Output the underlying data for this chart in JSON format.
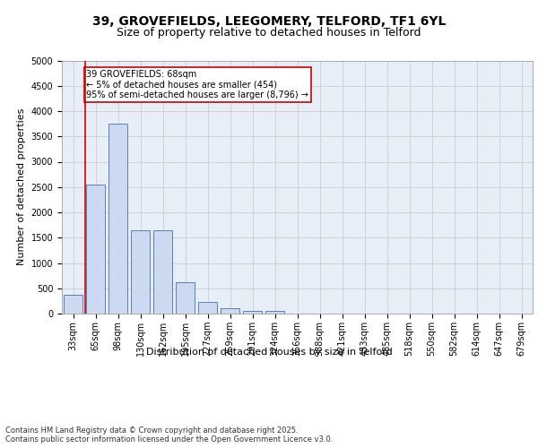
{
  "title_line1": "39, GROVEFIELDS, LEEGOMERY, TELFORD, TF1 6YL",
  "title_line2": "Size of property relative to detached houses in Telford",
  "xlabel": "Distribution of detached houses by size in Telford",
  "ylabel": "Number of detached properties",
  "categories": [
    "33sqm",
    "65sqm",
    "98sqm",
    "130sqm",
    "162sqm",
    "195sqm",
    "227sqm",
    "259sqm",
    "291sqm",
    "324sqm",
    "356sqm",
    "388sqm",
    "421sqm",
    "453sqm",
    "485sqm",
    "518sqm",
    "550sqm",
    "582sqm",
    "614sqm",
    "647sqm",
    "679sqm"
  ],
  "values": [
    380,
    2540,
    3750,
    1650,
    1650,
    620,
    230,
    110,
    60,
    55,
    0,
    0,
    0,
    0,
    0,
    0,
    0,
    0,
    0,
    0,
    0
  ],
  "bar_color": "#ccd9f0",
  "bar_edge_color": "#5580bb",
  "vline_color": "#cc0000",
  "annotation_text": "39 GROVEFIELDS: 68sqm\n← 5% of detached houses are smaller (454)\n95% of semi-detached houses are larger (8,796) →",
  "annotation_box_color": "#cc0000",
  "ylim": [
    0,
    5000
  ],
  "yticks": [
    0,
    500,
    1000,
    1500,
    2000,
    2500,
    3000,
    3500,
    4000,
    4500,
    5000
  ],
  "grid_color": "#cccccc",
  "background_color": "#e8eef8",
  "footer_text": "Contains HM Land Registry data © Crown copyright and database right 2025.\nContains public sector information licensed under the Open Government Licence v3.0.",
  "title_fontsize": 10,
  "subtitle_fontsize": 9,
  "axis_label_fontsize": 8,
  "tick_fontsize": 7,
  "annotation_fontsize": 7,
  "footer_fontsize": 6
}
